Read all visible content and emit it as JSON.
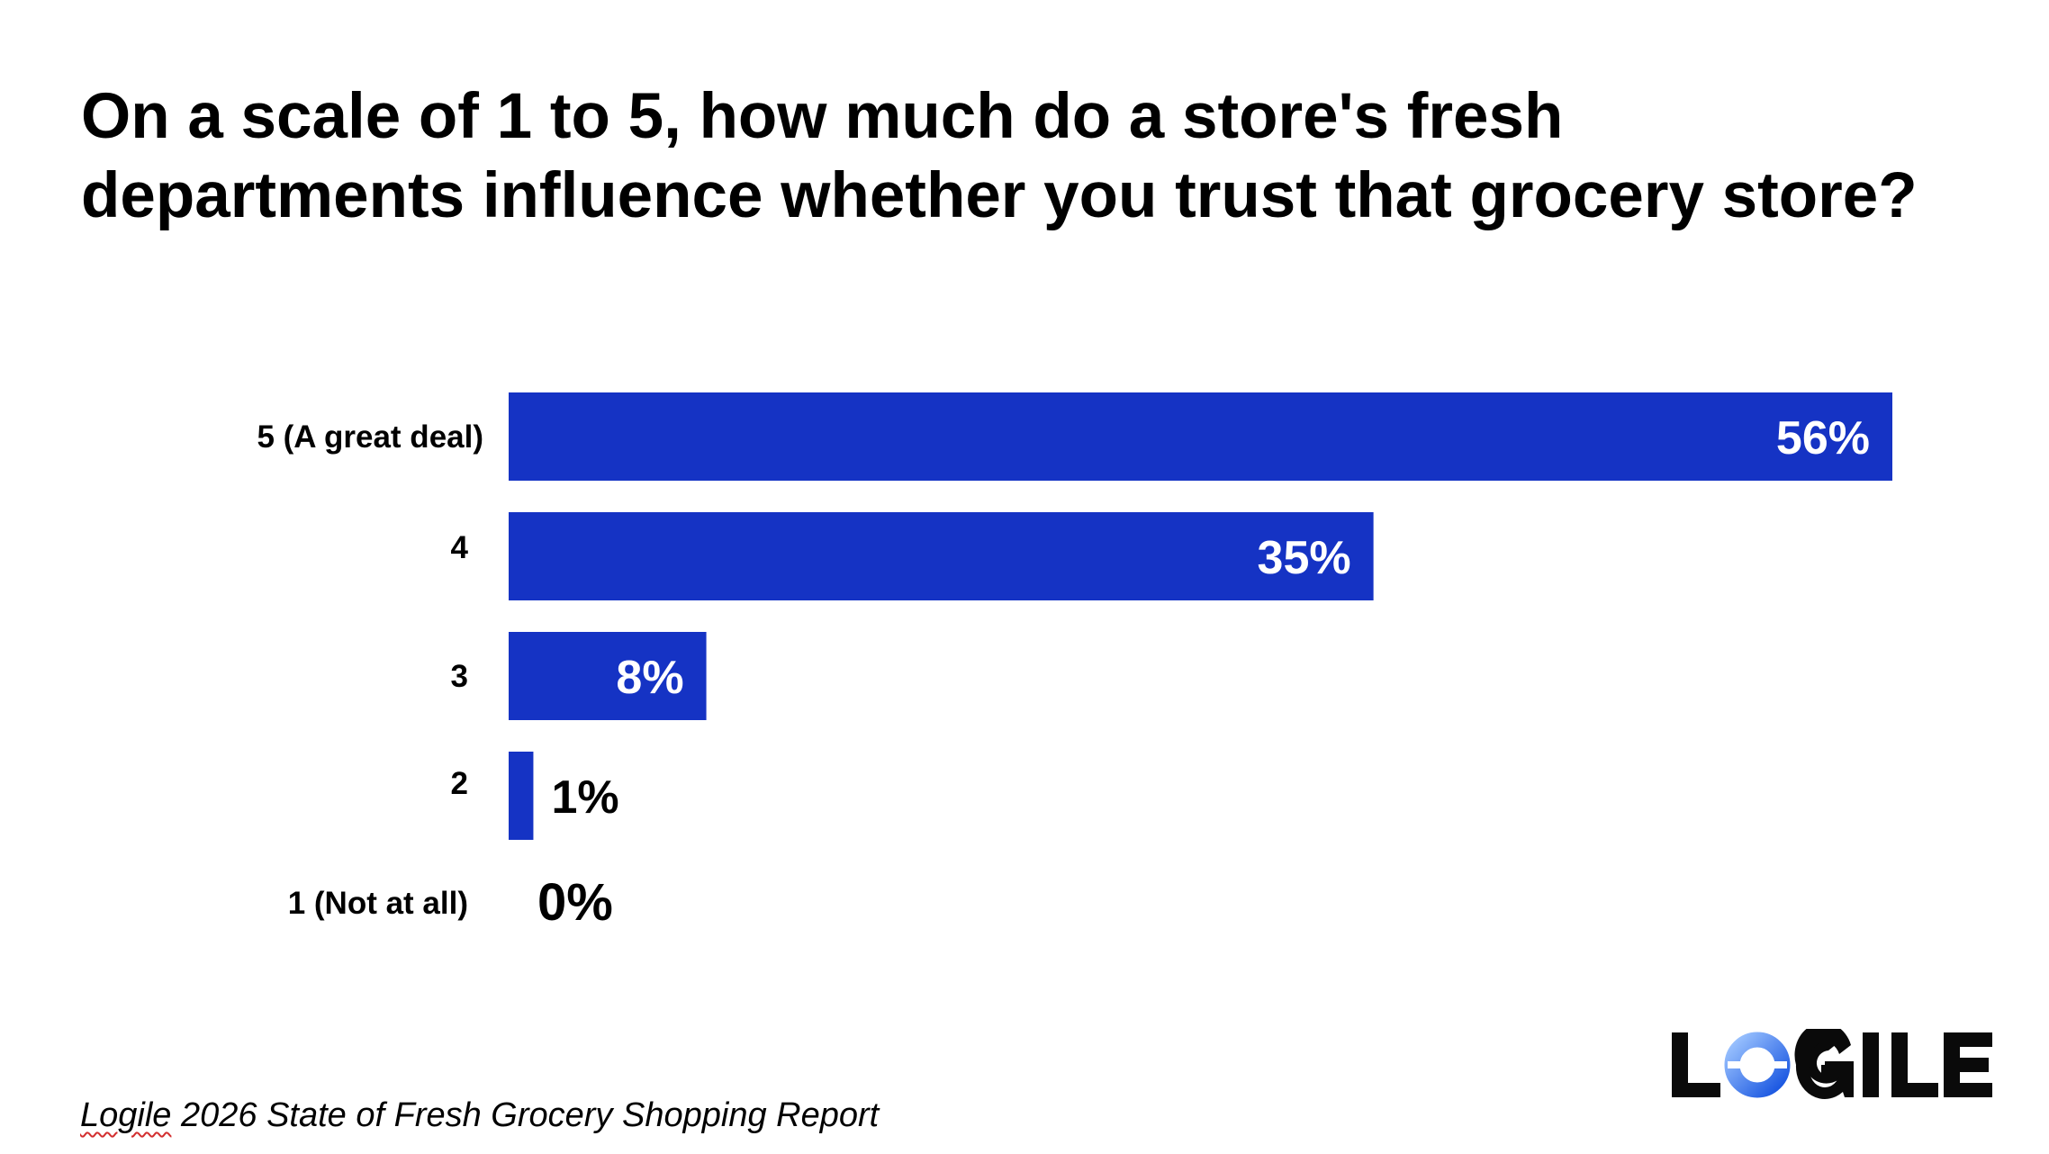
{
  "title": {
    "line1": "On a scale of 1 to 5, how much do a store's fresh",
    "line2": "departments influence whether you trust that grocery store?"
  },
  "chart_data": {
    "type": "bar",
    "orientation": "horizontal",
    "categories": [
      "5 (A great deal)",
      "4",
      "3",
      "2",
      "1 (Not at all)"
    ],
    "values": [
      56,
      35,
      8,
      1,
      0
    ],
    "value_labels": [
      "56%",
      "35%",
      "8%",
      "1%",
      "0%"
    ],
    "unit": "%",
    "xlim": [
      0,
      56
    ],
    "grid": false,
    "legend": "none",
    "bar_color": "#1533c4",
    "label_inside_color": "#ffffff",
    "label_outside_color": "#000000"
  },
  "footer": {
    "brand": "Logile",
    "rest": " 2026 State of Fresh Grocery Shopping Report"
  },
  "logo": {
    "text": "LOGILE",
    "icon": "logile-logo",
    "colors": {
      "dark": "#0a0a0a",
      "accent_light": "#9ec5ff",
      "accent_dark": "#1553e0"
    }
  }
}
